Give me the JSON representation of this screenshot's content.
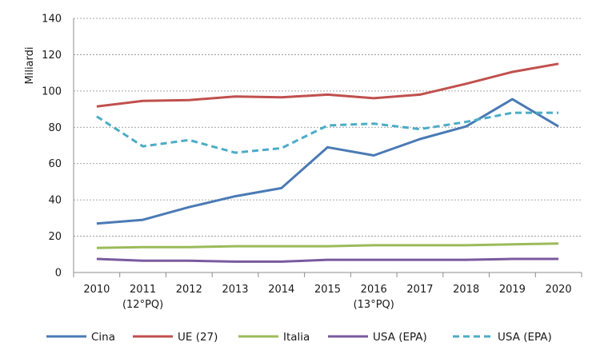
{
  "chart_data": {
    "type": "line",
    "ylabel": "Miliardi",
    "ylim": [
      0,
      140
    ],
    "yticks": [
      0,
      20,
      40,
      60,
      80,
      100,
      120,
      140
    ],
    "grid": "horizontal-dashed",
    "legend_position": "bottom",
    "x": [
      "2010",
      "2011",
      "2012",
      "2013",
      "2014",
      "2015",
      "2016",
      "2017",
      "2018",
      "2019",
      "2020"
    ],
    "x_sublabels": [
      "",
      "(12°PQ)",
      "",
      "",
      "",
      "",
      "(13°PQ)",
      "",
      "",
      "",
      ""
    ],
    "series": [
      {
        "name": "Cina",
        "color": "#4a7ab5",
        "dash": "solid",
        "values": [
          27,
          29,
          36,
          42,
          46.5,
          69,
          64.5,
          73.5,
          80.5,
          95.5,
          80.5
        ]
      },
      {
        "name": "UE (27)",
        "color": "#c0504d",
        "dash": "solid",
        "values": [
          91.5,
          94.5,
          95,
          97,
          96.5,
          98,
          96,
          98,
          104,
          110.5,
          115
        ]
      },
      {
        "name": "Italia",
        "color": "#9bbb59",
        "dash": "solid",
        "values": [
          13.5,
          14,
          14,
          14.5,
          14.5,
          14.5,
          15,
          15,
          15,
          15.5,
          16
        ]
      },
      {
        "name": "USA (EPA)",
        "color": "#7a5a9e",
        "dash": "solid",
        "values": [
          7.5,
          6.5,
          6.5,
          6,
          6,
          7,
          7,
          7,
          7,
          7.5,
          7.5
        ]
      },
      {
        "name": "USA (EPA)",
        "color": "#4bacc6",
        "dash": "dashed",
        "values": [
          86,
          69.5,
          73,
          66,
          68.5,
          81,
          82,
          79,
          83,
          88,
          88
        ]
      }
    ]
  }
}
